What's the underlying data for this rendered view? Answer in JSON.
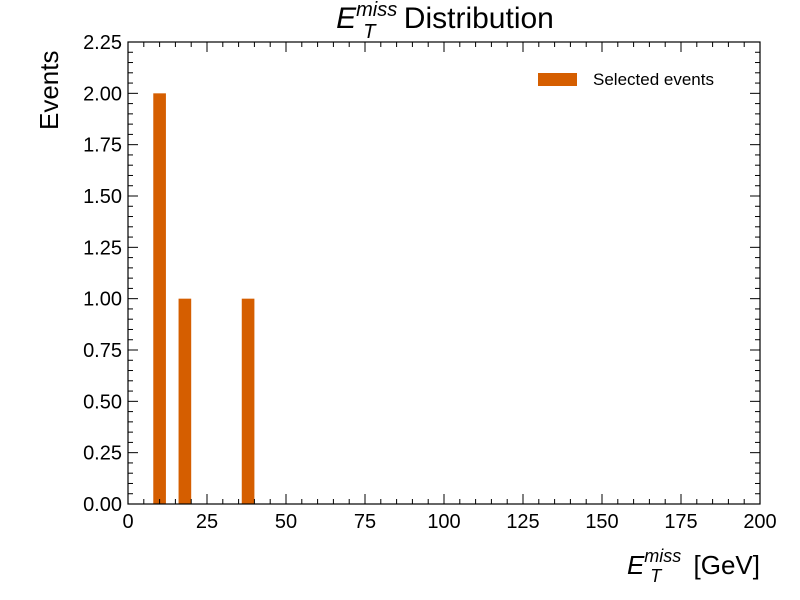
{
  "chart_data": {
    "type": "bar",
    "title": {
      "base": "E",
      "sub": "T",
      "sup": "miss",
      "rest": " Distribution"
    },
    "xlabel": {
      "base": "E",
      "sub": "T",
      "sup": "miss",
      "rest": " [GeV]"
    },
    "ylabel": "Events",
    "xlim": [
      0,
      200
    ],
    "ylim": [
      0,
      2.25
    ],
    "xticks": [
      0,
      25,
      50,
      75,
      100,
      125,
      150,
      175,
      200
    ],
    "yticks": [
      0.0,
      0.25,
      0.5,
      0.75,
      1.0,
      1.25,
      1.5,
      1.75,
      2.0,
      2.25
    ],
    "xtick_labels": [
      "0",
      "25",
      "50",
      "75",
      "100",
      "125",
      "150",
      "175",
      "200"
    ],
    "ytick_labels": [
      "0.00",
      "0.25",
      "0.50",
      "0.75",
      "1.00",
      "1.25",
      "1.50",
      "1.75",
      "2.00",
      "2.25"
    ],
    "legend_position": "top-right",
    "series": [
      {
        "name": "Selected events",
        "color": "#d55e00",
        "bars": [
          {
            "x0": 8,
            "x1": 12,
            "value": 2
          },
          {
            "x0": 16,
            "x1": 20,
            "value": 1
          },
          {
            "x0": 36,
            "x1": 40,
            "value": 1
          }
        ]
      }
    ],
    "grid": false
  }
}
